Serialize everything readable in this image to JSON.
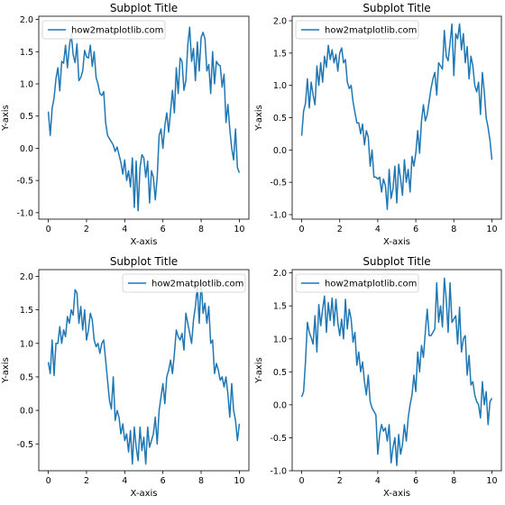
{
  "chart_data": [
    {
      "type": "line",
      "title": "Subplot Title",
      "xlabel": "X-axis",
      "ylabel": "Y-axis",
      "xlim": [
        -0.5,
        10.5
      ],
      "ylim": [
        -1.1,
        2.05
      ],
      "xticks": [
        0,
        2,
        4,
        6,
        8,
        10
      ],
      "yticks": [
        -1.0,
        -0.5,
        0.0,
        0.5,
        1.0,
        1.5,
        2.0
      ],
      "legend_position": "upper-left",
      "color": "#1f77b4",
      "series": [
        {
          "name": "how2matplotlib.com",
          "x": [
            0,
            0.1,
            0.2,
            0.3,
            0.4,
            0.5,
            0.6,
            0.7,
            0.8,
            0.9,
            1,
            1.1,
            1.2,
            1.3,
            1.4,
            1.5,
            1.6,
            1.7,
            1.8,
            1.9,
            2,
            2.1,
            2.2,
            2.3,
            2.4,
            2.5,
            2.6,
            2.7,
            2.8,
            2.9,
            3,
            3.1,
            3.2,
            3.3,
            3.4,
            3.5,
            3.6,
            3.7,
            3.8,
            3.9,
            4,
            4.1,
            4.2,
            4.3,
            4.4,
            4.5,
            4.6,
            4.7,
            4.8,
            4.9,
            5,
            5.1,
            5.2,
            5.3,
            5.4,
            5.5,
            5.6,
            5.7,
            5.8,
            5.9,
            6,
            6.1,
            6.2,
            6.3,
            6.4,
            6.5,
            6.6,
            6.7,
            6.8,
            6.9,
            7,
            7.1,
            7.2,
            7.3,
            7.4,
            7.5,
            7.6,
            7.7,
            7.8,
            7.9,
            8,
            8.1,
            8.2,
            8.3,
            8.4,
            8.5,
            8.6,
            8.7,
            8.8,
            8.9,
            9,
            9.1,
            9.2,
            9.3,
            9.4,
            9.5,
            9.6,
            9.7,
            9.8,
            9.9,
            10
          ],
          "y": [
            0.57,
            0.2,
            0.62,
            0.78,
            1.08,
            1.25,
            0.89,
            1.35,
            1.32,
            1.6,
            1.25,
            1.58,
            1.78,
            1.45,
            1.33,
            1.62,
            1.05,
            1.1,
            1.2,
            1.52,
            1.42,
            1.4,
            1.6,
            1.27,
            1.5,
            1.1,
            1.0,
            0.85,
            0.82,
            0.88,
            0.4,
            0.2,
            0.15,
            0.1,
            0.05,
            -0.05,
            0.02,
            -0.1,
            -0.22,
            -0.4,
            -0.18,
            -0.5,
            -0.35,
            -0.6,
            -0.15,
            -0.92,
            -0.2,
            -0.97,
            -0.3,
            -0.1,
            -0.15,
            -0.45,
            -0.2,
            -0.85,
            -0.35,
            -0.45,
            -0.8,
            -0.45,
            0.2,
            0.3,
            0.0,
            0.35,
            0.55,
            0.25,
            0.58,
            0.9,
            0.55,
            1.25,
            0.85,
            1.4,
            1.35,
            0.9,
            1.05,
            1.6,
            1.88,
            1.35,
            1.55,
            1.05,
            1.65,
            1.2,
            1.72,
            1.8,
            1.7,
            1.2,
            1.3,
            0.85,
            1.5,
            1.0,
            1.35,
            1.3,
            1.28,
            0.95,
            1.15,
            0.4,
            0.68,
            0.3,
            0.0,
            -0.18,
            0.3,
            -0.3,
            -0.38
          ]
        }
      ]
    },
    {
      "type": "line",
      "title": "Subplot Title",
      "xlabel": "X-axis",
      "ylabel": "Y-axis",
      "xlim": [
        -0.5,
        10.5
      ],
      "ylim": [
        -1.07,
        2.07
      ],
      "xticks": [
        0,
        2,
        4,
        6,
        8,
        10
      ],
      "yticks": [
        -1.0,
        -0.5,
        0.0,
        0.5,
        1.0,
        1.5,
        2.0
      ],
      "legend_position": "upper-left",
      "color": "#1f77b4",
      "series": [
        {
          "name": "how2matplotlib.com",
          "x": [
            0,
            0.1,
            0.2,
            0.3,
            0.4,
            0.5,
            0.6,
            0.7,
            0.8,
            0.9,
            1,
            1.1,
            1.2,
            1.3,
            1.4,
            1.5,
            1.6,
            1.7,
            1.8,
            1.9,
            2,
            2.1,
            2.2,
            2.3,
            2.4,
            2.5,
            2.6,
            2.7,
            2.8,
            2.9,
            3,
            3.1,
            3.2,
            3.3,
            3.4,
            3.5,
            3.6,
            3.7,
            3.8,
            3.9,
            4,
            4.1,
            4.2,
            4.3,
            4.4,
            4.5,
            4.6,
            4.7,
            4.8,
            4.9,
            5,
            5.1,
            5.2,
            5.3,
            5.4,
            5.5,
            5.6,
            5.7,
            5.8,
            5.9,
            6,
            6.1,
            6.2,
            6.3,
            6.4,
            6.5,
            6.6,
            6.7,
            6.8,
            6.9,
            7,
            7.1,
            7.2,
            7.3,
            7.4,
            7.5,
            7.6,
            7.7,
            7.8,
            7.9,
            8,
            8.1,
            8.2,
            8.3,
            8.4,
            8.5,
            8.6,
            8.7,
            8.8,
            8.9,
            9,
            9.1,
            9.2,
            9.3,
            9.4,
            9.5,
            9.6,
            9.7,
            9.8,
            9.9,
            10
          ],
          "y": [
            0.22,
            0.6,
            0.72,
            1.1,
            0.65,
            1.05,
            0.85,
            0.7,
            1.3,
            1.0,
            1.35,
            1.05,
            1.45,
            1.28,
            1.62,
            1.4,
            1.55,
            1.35,
            1.48,
            1.22,
            1.5,
            1.58,
            1.35,
            1.4,
            1.05,
            0.95,
            1.0,
            0.75,
            0.58,
            0.42,
            0.42,
            0.25,
            0.4,
            0.08,
            0.3,
            0.2,
            -0.25,
            0.0,
            -0.42,
            -0.42,
            -0.45,
            -0.42,
            -0.65,
            -0.45,
            -0.55,
            -0.92,
            -0.3,
            -0.75,
            -0.6,
            -0.25,
            -0.82,
            -0.22,
            -0.45,
            -0.7,
            -0.15,
            -0.5,
            -0.3,
            -0.65,
            -0.1,
            -0.25,
            -0.05,
            0.3,
            -0.05,
            0.45,
            0.7,
            0.45,
            0.55,
            0.75,
            0.95,
            1.1,
            1.2,
            0.85,
            1.35,
            1.3,
            1.25,
            1.85,
            1.45,
            1.38,
            1.65,
            1.95,
            1.15,
            1.8,
            1.72,
            1.95,
            1.55,
            1.8,
            1.35,
            1.6,
            1.1,
            1.45,
            1.3,
            1.0,
            0.9,
            1.05,
            0.55,
            1.2,
            0.9,
            0.5,
            0.35,
            0.15,
            -0.15
          ]
        }
      ]
    },
    {
      "type": "line",
      "title": "Subplot Title",
      "xlabel": "X-axis",
      "ylabel": "Y-axis",
      "xlim": [
        -0.5,
        10.5
      ],
      "ylim": [
        -0.9,
        2.1
      ],
      "xticks": [
        0,
        2,
        4,
        6,
        8,
        10
      ],
      "yticks": [
        -0.5,
        0.0,
        0.5,
        1.0,
        1.5,
        2.0
      ],
      "legend_position": "upper-right",
      "color": "#1f77b4",
      "series": [
        {
          "name": "how2matplotlib.com",
          "x": [
            0,
            0.1,
            0.2,
            0.3,
            0.4,
            0.5,
            0.6,
            0.7,
            0.8,
            0.9,
            1,
            1.1,
            1.2,
            1.3,
            1.4,
            1.5,
            1.6,
            1.7,
            1.8,
            1.9,
            2,
            2.1,
            2.2,
            2.3,
            2.4,
            2.5,
            2.6,
            2.7,
            2.8,
            2.9,
            3,
            3.1,
            3.2,
            3.3,
            3.4,
            3.5,
            3.6,
            3.7,
            3.8,
            3.9,
            4,
            4.1,
            4.2,
            4.3,
            4.4,
            4.5,
            4.6,
            4.7,
            4.8,
            4.9,
            5,
            5.1,
            5.2,
            5.3,
            5.4,
            5.5,
            5.6,
            5.7,
            5.8,
            5.9,
            6,
            6.1,
            6.2,
            6.3,
            6.4,
            6.5,
            6.6,
            6.7,
            6.8,
            6.9,
            7,
            7.1,
            7.2,
            7.3,
            7.4,
            7.5,
            7.6,
            7.7,
            7.8,
            7.9,
            8,
            8.1,
            8.2,
            8.3,
            8.4,
            8.5,
            8.6,
            8.7,
            8.8,
            8.9,
            9,
            9.1,
            9.2,
            9.3,
            9.4,
            9.5,
            9.6,
            9.7,
            9.8,
            9.9,
            10
          ],
          "y": [
            0.72,
            0.55,
            1.05,
            0.52,
            1.0,
            1.0,
            1.25,
            1.0,
            1.2,
            1.1,
            1.4,
            1.3,
            1.5,
            1.42,
            1.8,
            1.75,
            1.3,
            1.55,
            1.2,
            1.5,
            1.05,
            1.2,
            1.45,
            1.35,
            1.05,
            0.95,
            1.0,
            0.85,
            1.0,
            1.05,
            0.75,
            0.45,
            0.15,
            0.02,
            0.5,
            -0.15,
            0.0,
            -0.1,
            -0.35,
            -0.2,
            -0.45,
            -0.35,
            -0.62,
            -0.3,
            -0.8,
            -0.25,
            -0.55,
            -0.75,
            -0.25,
            -0.6,
            -0.4,
            -0.8,
            -0.25,
            -0.55,
            -0.45,
            -0.35,
            -0.1,
            -0.5,
            0.0,
            0.2,
            0.4,
            0.1,
            0.5,
            0.6,
            0.75,
            0.55,
            0.85,
            1.2,
            1.1,
            1.05,
            1.15,
            0.9,
            1.45,
            1.3,
            1.15,
            1.0,
            1.35,
            1.55,
            1.85,
            1.3,
            1.95,
            1.45,
            1.6,
            1.3,
            1.55,
            1.0,
            1.05,
            0.55,
            0.7,
            0.6,
            0.45,
            0.5,
            0.35,
            0.5,
            0.25,
            -0.1,
            0.4,
            0.0,
            -0.15,
            -0.45,
            -0.2
          ]
        }
      ]
    },
    {
      "type": "line",
      "title": "Subplot Title",
      "xlabel": "X-axis",
      "ylabel": "Y-axis",
      "xlim": [
        -0.5,
        10.5
      ],
      "ylim": [
        -1.0,
        2.05
      ],
      "xticks": [
        0,
        2,
        4,
        6,
        8,
        10
      ],
      "yticks": [
        -1.0,
        -0.5,
        0.0,
        0.5,
        1.0,
        1.5,
        2.0
      ],
      "legend_position": "upper-left",
      "color": "#1f77b4",
      "series": [
        {
          "name": "how2matplotlib.com",
          "x": [
            0,
            0.1,
            0.2,
            0.3,
            0.4,
            0.5,
            0.6,
            0.7,
            0.8,
            0.9,
            1,
            1.1,
            1.2,
            1.3,
            1.4,
            1.5,
            1.6,
            1.7,
            1.8,
            1.9,
            2,
            2.1,
            2.2,
            2.3,
            2.4,
            2.5,
            2.6,
            2.7,
            2.8,
            2.9,
            3,
            3.1,
            3.2,
            3.3,
            3.4,
            3.5,
            3.6,
            3.7,
            3.8,
            3.9,
            4,
            4.1,
            4.2,
            4.3,
            4.4,
            4.5,
            4.6,
            4.7,
            4.8,
            4.9,
            5,
            5.1,
            5.2,
            5.3,
            5.4,
            5.5,
            5.6,
            5.7,
            5.8,
            5.9,
            6,
            6.1,
            6.2,
            6.3,
            6.4,
            6.5,
            6.6,
            6.7,
            6.8,
            6.9,
            7,
            7.1,
            7.2,
            7.3,
            7.4,
            7.5,
            7.6,
            7.7,
            7.8,
            7.9,
            8,
            8.1,
            8.2,
            8.3,
            8.4,
            8.5,
            8.6,
            8.7,
            8.8,
            8.9,
            9,
            9.1,
            9.2,
            9.3,
            9.4,
            9.5,
            9.6,
            9.7,
            9.8,
            9.9,
            10
          ],
          "y": [
            0.12,
            0.2,
            0.65,
            1.25,
            1.1,
            1.02,
            0.92,
            1.35,
            0.8,
            1.52,
            1.2,
            1.45,
            1.65,
            1.1,
            1.55,
            1.28,
            1.62,
            1.2,
            1.6,
            1.25,
            1.05,
            1.3,
            1.0,
            1.6,
            1.15,
            1.45,
            1.3,
            0.95,
            1.1,
            0.6,
            0.8,
            0.5,
            0.65,
            0.35,
            0.15,
            0.45,
            0.05,
            -0.05,
            -0.1,
            -0.15,
            -0.75,
            -0.45,
            -0.3,
            -0.4,
            -0.35,
            -0.55,
            -0.3,
            -0.88,
            -0.65,
            -0.5,
            -0.92,
            -0.45,
            -0.75,
            -0.6,
            -0.3,
            -0.55,
            -0.2,
            0.0,
            0.15,
            0.45,
            0.2,
            0.8,
            0.5,
            0.9,
            0.72,
            1.1,
            1.45,
            1.05,
            1.05,
            1.1,
            1.15,
            1.85,
            1.25,
            1.5,
            1.18,
            1.92,
            1.6,
            1.1,
            1.85,
            1.25,
            1.3,
            1.35,
            0.92,
            1.48,
            0.8,
            1.0,
            1.05,
            0.45,
            0.75,
            0.3,
            0.35,
            0.15,
            0.05,
            0.0,
            -0.2,
            0.35,
            0.0,
            0.2,
            -0.3,
            0.05,
            0.1
          ]
        }
      ]
    }
  ]
}
